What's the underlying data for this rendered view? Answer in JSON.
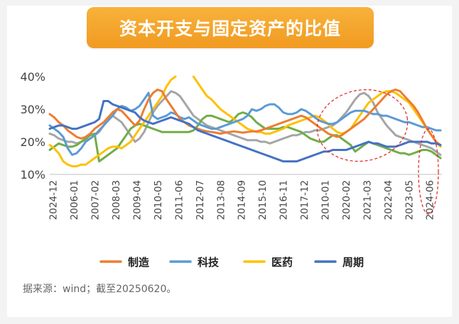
{
  "header": {
    "title": "资本开支与固定资产的比值"
  },
  "source_note": "据来源：wind；截至20250620。",
  "chart_data": {
    "type": "line",
    "title": "资本开支与固定资产的比值",
    "xlabel": "",
    "ylabel": "",
    "x_ticks": [
      "2024-12",
      "2006-01",
      "2007-02",
      "2008-03",
      "2009-04",
      "2010-05",
      "2011-06",
      "2012-07",
      "2013-08",
      "2014-09",
      "2015-10",
      "2016-11",
      "2017-12",
      "2010-01",
      "2020-02",
      "2021-03",
      "2022-04",
      "2023-05",
      "2024-06"
    ],
    "y_ticks": [
      "10%",
      "20%",
      "30%",
      "40%"
    ],
    "ylim": [
      10,
      40
    ],
    "grid": false,
    "legend_position": "bottom",
    "series": [
      {
        "name": "制造",
        "color": "#ed7d31",
        "values": [
          28.5,
          27.5,
          26,
          25,
          23.5,
          22.5,
          21.5,
          21,
          21.5,
          22.5,
          24,
          25,
          26,
          27.5,
          29,
          30,
          29.5,
          28,
          26.5,
          25,
          26.5,
          30,
          33,
          35,
          36,
          35.5,
          33,
          31,
          29,
          27,
          26,
          25,
          24.5,
          24,
          23.5,
          23.2,
          23,
          22.8,
          22.5,
          22.8,
          23,
          23.2,
          23,
          22.8,
          23,
          23.2,
          23.2,
          23.5,
          24,
          24.5,
          25,
          25.5,
          26,
          26.5,
          27,
          27.5,
          28,
          27.5,
          26.5,
          25.5,
          24.5,
          23.5,
          22.5,
          22,
          21.5,
          22,
          23,
          24,
          25,
          26,
          27,
          28.5,
          30,
          31.5,
          33,
          34.5,
          35.5,
          36,
          35.5,
          34,
          32.5,
          31,
          29,
          26.5,
          24,
          22,
          20,
          19
        ]
      },
      {
        "name": "科技",
        "color": "#5b9bd5",
        "values": [
          25,
          24,
          23,
          21.5,
          18,
          16,
          16.5,
          18,
          20,
          21,
          22,
          23.5,
          25,
          26.5,
          28,
          30,
          31,
          30.5,
          29.5,
          30,
          31,
          33,
          35,
          28,
          27,
          27.5,
          28,
          29,
          28.5,
          27.5,
          27,
          27.5,
          26.5,
          25.5,
          25,
          24.5,
          24,
          24,
          24.5,
          25,
          25.5,
          26,
          26.5,
          27,
          28,
          30,
          29.5,
          30,
          31,
          31.5,
          31.5,
          30.5,
          29,
          28.5,
          28.5,
          29,
          30,
          29.5,
          28.5,
          27.5,
          26.5,
          26,
          25.5,
          25.5,
          26,
          27,
          28,
          29,
          29.5,
          29.5,
          29.5,
          29,
          28.5,
          28.5,
          28,
          28,
          27.5,
          27,
          26.5,
          26,
          26,
          25.5,
          25,
          24.5,
          24.5,
          24,
          23.5,
          23.5
        ]
      },
      {
        "name": "医药",
        "color": "#ffc000",
        "values": [
          19,
          18,
          16.5,
          14,
          13,
          12.5,
          12.5,
          13,
          13,
          14,
          15,
          16,
          17,
          18,
          18.5,
          18.5,
          18,
          19,
          20,
          22,
          24,
          26,
          28,
          30,
          32,
          34,
          37,
          39,
          40,
          null,
          null,
          null,
          40,
          38,
          36,
          34,
          33,
          31.5,
          30,
          29,
          28,
          27,
          26,
          25,
          24,
          23.5,
          23,
          23,
          22.5,
          22.5,
          23,
          23.5,
          24,
          25,
          25.5,
          26,
          26.5,
          27,
          27.5,
          28,
          27.5,
          26.5,
          25.5,
          24,
          23,
          22.5,
          23,
          24,
          26,
          28,
          30,
          32,
          33,
          34,
          35,
          35.5,
          35.5,
          35,
          34,
          33,
          32,
          30,
          28,
          26,
          24,
          22,
          20,
          18.5
        ]
      },
      {
        "name": "周期",
        "color": "#4472c4",
        "values": [
          24,
          24.5,
          25,
          25,
          24.5,
          24,
          24,
          24.5,
          25,
          25.5,
          26,
          27,
          32.5,
          32.5,
          31.5,
          31,
          30.5,
          30,
          29.5,
          29,
          27.5,
          26.5,
          26,
          25.5,
          26,
          26.5,
          27,
          27.5,
          27,
          26.5,
          26,
          25.5,
          24.5,
          23.5,
          23,
          22.5,
          22,
          21.5,
          21,
          20.5,
          20,
          19.5,
          19,
          18.5,
          18,
          17.5,
          17,
          16.5,
          16,
          15.5,
          15,
          14.5,
          14,
          14,
          14,
          14,
          14.5,
          15,
          15.5,
          16,
          16.5,
          17,
          17,
          17.5,
          17.5,
          17.5,
          17.5,
          18,
          18.5,
          19,
          19.5,
          20,
          19.5,
          19.5,
          19,
          18.5,
          18.5,
          18.5,
          19,
          19.5,
          20,
          20,
          20,
          20,
          20,
          19.5,
          19.5,
          19
        ]
      },
      {
        "name": "",
        "color": "#a5a5a5",
        "values": [
          22.5,
          22,
          21,
          20.5,
          20,
          20,
          19.5,
          20,
          20.5,
          21,
          22,
          23,
          25,
          27,
          28,
          27,
          26,
          24,
          22,
          20,
          21,
          23,
          26,
          29,
          31,
          32.5,
          34,
          35.5,
          35,
          34,
          32,
          30,
          28,
          27,
          26,
          25,
          24.5,
          24,
          23.5,
          23,
          22.5,
          22,
          21.5,
          21,
          20.5,
          20.5,
          20.5,
          20,
          20,
          19.5,
          20,
          20.5,
          21,
          21.5,
          22,
          22,
          22.5,
          23,
          23,
          23.5,
          23.5,
          24,
          24.5,
          25,
          26,
          27.5,
          29,
          31,
          33,
          34.5,
          35,
          34,
          32,
          29,
          27,
          25,
          23.5,
          22,
          21.5,
          21,
          20.5,
          20,
          19.5,
          19,
          18.5,
          18,
          17,
          16
        ]
      },
      {
        "name": "",
        "color": "#70ad47",
        "values": [
          17.5,
          18.5,
          19.5,
          19,
          18.5,
          18.5,
          19,
          20,
          21,
          22,
          22.5,
          14,
          15,
          16,
          17,
          18,
          20,
          22,
          24,
          25,
          25.5,
          25,
          24.5,
          24,
          23.5,
          23,
          23,
          23,
          23,
          23,
          23,
          23,
          23.5,
          25,
          27,
          28,
          28,
          27.5,
          27,
          26.5,
          26,
          27,
          28.5,
          29,
          28.5,
          27.5,
          26,
          25,
          24,
          24,
          24,
          24,
          24.5,
          24.5,
          24,
          23.5,
          23,
          22,
          21,
          20.5,
          20,
          20,
          21,
          22,
          22,
          21,
          20,
          19,
          17,
          18,
          19,
          20,
          19.5,
          19,
          18.5,
          18,
          17.5,
          17,
          16.5,
          16.5,
          16,
          16.5,
          17,
          17.5,
          17.5,
          17,
          16,
          15
        ]
      }
    ],
    "annotations": [
      "dashed-red-ellipse-recent-period"
    ]
  }
}
